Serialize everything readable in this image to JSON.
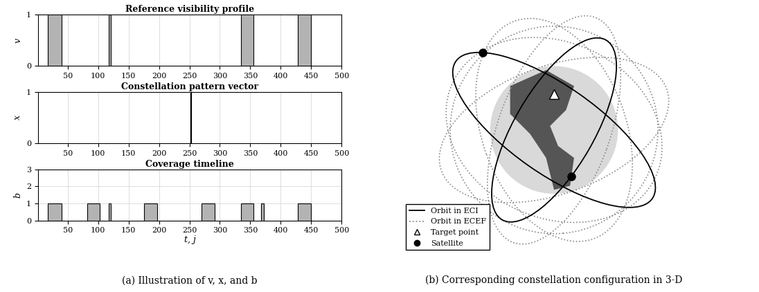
{
  "chart_data": [
    {
      "type": "area",
      "title": "Reference visibility profile",
      "y_label": "v",
      "intervals": [
        [
          17,
          40
        ],
        [
          117,
          121
        ],
        [
          335,
          355
        ],
        [
          428,
          450
        ]
      ],
      "value": 1,
      "color": "#b3b3b3",
      "xlim": [
        1,
        500
      ],
      "xticks": [
        50,
        100,
        150,
        200,
        250,
        300,
        350,
        400,
        450,
        500
      ],
      "ylim": [
        0,
        1
      ],
      "yticks": [
        0,
        1
      ],
      "grid": true
    },
    {
      "type": "stem",
      "title": "Constellation pattern vector",
      "y_label": "x",
      "x": [
        253
      ],
      "values": [
        1
      ],
      "color": "#000000",
      "xlim": [
        1,
        500
      ],
      "xticks": [
        50,
        100,
        150,
        200,
        250,
        300,
        350,
        400,
        450,
        500
      ],
      "ylim": [
        0,
        1
      ],
      "yticks": [
        0,
        1
      ],
      "grid": true
    },
    {
      "type": "area",
      "title": "Coverage timeline",
      "y_label": "b",
      "x_label": "t, j",
      "intervals": [
        [
          17,
          40
        ],
        [
          82,
          103
        ],
        [
          117,
          121
        ],
        [
          175,
          197
        ],
        [
          270,
          292
        ],
        [
          335,
          355
        ],
        [
          368,
          372
        ],
        [
          428,
          450
        ]
      ],
      "value": 1,
      "color": "#b3b3b3",
      "xlim": [
        1,
        500
      ],
      "xticks": [
        50,
        100,
        150,
        200,
        250,
        300,
        350,
        400,
        450,
        500
      ],
      "ylim": [
        0,
        3
      ],
      "yticks": [
        0,
        1,
        2,
        3
      ],
      "grid": true
    }
  ],
  "diagram": {
    "legend": "lower left",
    "entries": [
      {
        "label": "Orbit in ECI",
        "line_style": "solid",
        "color": "#000000"
      },
      {
        "label": "Orbit in ECEF",
        "line_style": "dotted",
        "color": "#888888"
      },
      {
        "label": "Target point",
        "marker": "^",
        "color": "#ffffff"
      },
      {
        "label": "Satellite",
        "marker": "o",
        "color": "#000000"
      }
    ]
  },
  "captions": [
    "(a) Illustration of v, x, and b",
    "(b) Corresponding constellation configuration in 3-D"
  ]
}
